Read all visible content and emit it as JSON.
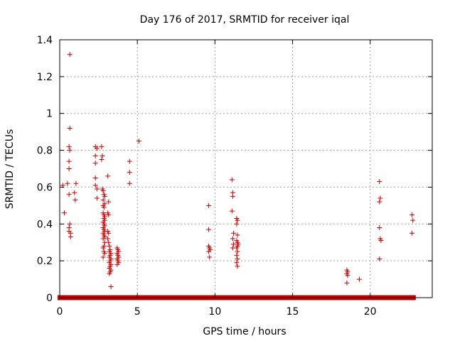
{
  "chart_data": {
    "type": "scatter",
    "title": "Day 176 of 2017, SRMTID for receiver iqal",
    "xlabel": "GPS time / hours",
    "ylabel": "SRMTID / TECUs",
    "xlim": [
      0,
      24
    ],
    "ylim": [
      0,
      1.4
    ],
    "x_ticks": [
      0,
      5,
      10,
      15,
      20
    ],
    "x_tick_labels": [
      "0",
      "5",
      "10",
      "15",
      "20"
    ],
    "y_ticks": [
      0,
      0.2,
      0.4,
      0.6,
      0.8,
      1.0,
      1.2,
      1.4
    ],
    "y_tick_labels": [
      "0",
      "0.2",
      "0.4",
      "0.6",
      "0.8",
      "1",
      "1.2",
      "1.4"
    ],
    "grid": true,
    "marker": "+",
    "color": "#cc0000",
    "series": [
      {
        "name": "SRMTID",
        "points": [
          [
            0.2,
            0.61
          ],
          [
            0.3,
            0.46
          ],
          [
            0.5,
            0.62
          ],
          [
            0.65,
            1.32
          ],
          [
            0.65,
            0.92
          ],
          [
            0.6,
            0.82
          ],
          [
            0.65,
            0.8
          ],
          [
            0.6,
            0.74
          ],
          [
            0.6,
            0.7
          ],
          [
            0.6,
            0.56
          ],
          [
            0.65,
            0.4
          ],
          [
            0.6,
            0.38
          ],
          [
            0.6,
            0.36
          ],
          [
            0.7,
            0.35
          ],
          [
            0.7,
            0.33
          ],
          [
            0.95,
            0.57
          ],
          [
            1.05,
            0.62
          ],
          [
            1.0,
            0.53
          ],
          [
            2.3,
            0.82
          ],
          [
            2.4,
            0.81
          ],
          [
            2.3,
            0.77
          ],
          [
            2.3,
            0.73
          ],
          [
            2.3,
            0.65
          ],
          [
            2.3,
            0.61
          ],
          [
            2.4,
            0.59
          ],
          [
            2.4,
            0.54
          ],
          [
            2.7,
            0.82
          ],
          [
            2.75,
            0.77
          ],
          [
            2.7,
            0.75
          ],
          [
            2.75,
            0.59
          ],
          [
            2.8,
            0.58
          ],
          [
            2.85,
            0.56
          ],
          [
            2.9,
            0.55
          ],
          [
            2.8,
            0.53
          ],
          [
            2.9,
            0.51
          ],
          [
            2.8,
            0.5
          ],
          [
            2.85,
            0.49
          ],
          [
            2.8,
            0.46
          ],
          [
            2.85,
            0.45
          ],
          [
            2.9,
            0.44
          ],
          [
            2.85,
            0.43
          ],
          [
            2.9,
            0.42
          ],
          [
            2.8,
            0.41
          ],
          [
            2.85,
            0.4
          ],
          [
            2.9,
            0.39
          ],
          [
            2.8,
            0.38
          ],
          [
            2.85,
            0.37
          ],
          [
            2.9,
            0.36
          ],
          [
            2.8,
            0.35
          ],
          [
            2.85,
            0.34
          ],
          [
            2.9,
            0.33
          ],
          [
            2.8,
            0.32
          ],
          [
            2.9,
            0.3
          ],
          [
            2.85,
            0.28
          ],
          [
            2.8,
            0.27
          ],
          [
            2.85,
            0.25
          ],
          [
            2.9,
            0.24
          ],
          [
            2.8,
            0.22
          ],
          [
            3.1,
            0.66
          ],
          [
            3.15,
            0.52
          ],
          [
            3.1,
            0.46
          ],
          [
            3.15,
            0.45
          ],
          [
            3.1,
            0.36
          ],
          [
            3.15,
            0.35
          ],
          [
            3.1,
            0.32
          ],
          [
            3.15,
            0.3
          ],
          [
            3.2,
            0.28
          ],
          [
            3.25,
            0.26
          ],
          [
            3.2,
            0.25
          ],
          [
            3.3,
            0.24
          ],
          [
            3.25,
            0.23
          ],
          [
            3.2,
            0.22
          ],
          [
            3.3,
            0.21
          ],
          [
            3.25,
            0.2
          ],
          [
            3.2,
            0.19
          ],
          [
            3.3,
            0.18
          ],
          [
            3.25,
            0.17
          ],
          [
            3.2,
            0.16
          ],
          [
            3.3,
            0.15
          ],
          [
            3.25,
            0.14
          ],
          [
            3.2,
            0.13
          ],
          [
            3.3,
            0.06
          ],
          [
            3.7,
            0.27
          ],
          [
            3.75,
            0.26
          ],
          [
            3.8,
            0.25
          ],
          [
            3.7,
            0.24
          ],
          [
            3.75,
            0.23
          ],
          [
            3.8,
            0.22
          ],
          [
            3.7,
            0.21
          ],
          [
            3.75,
            0.2
          ],
          [
            3.8,
            0.19
          ],
          [
            3.7,
            0.18
          ],
          [
            4.5,
            0.74
          ],
          [
            4.5,
            0.68
          ],
          [
            4.5,
            0.62
          ],
          [
            5.1,
            0.85
          ],
          [
            9.6,
            0.5
          ],
          [
            9.6,
            0.37
          ],
          [
            9.6,
            0.28
          ],
          [
            9.65,
            0.27
          ],
          [
            9.7,
            0.26
          ],
          [
            9.6,
            0.25
          ],
          [
            9.65,
            0.22
          ],
          [
            11.1,
            0.64
          ],
          [
            11.15,
            0.57
          ],
          [
            11.15,
            0.55
          ],
          [
            11.1,
            0.47
          ],
          [
            11.2,
            0.35
          ],
          [
            11.15,
            0.32
          ],
          [
            11.2,
            0.29
          ],
          [
            11.15,
            0.27
          ],
          [
            11.4,
            0.43
          ],
          [
            11.45,
            0.42
          ],
          [
            11.4,
            0.4
          ],
          [
            11.45,
            0.34
          ],
          [
            11.4,
            0.31
          ],
          [
            11.45,
            0.3
          ],
          [
            11.5,
            0.29
          ],
          [
            11.45,
            0.28
          ],
          [
            11.4,
            0.27
          ],
          [
            11.45,
            0.25
          ],
          [
            11.4,
            0.23
          ],
          [
            11.45,
            0.21
          ],
          [
            11.4,
            0.19
          ],
          [
            11.45,
            0.17
          ],
          [
            18.5,
            0.15
          ],
          [
            18.55,
            0.14
          ],
          [
            18.5,
            0.13
          ],
          [
            18.55,
            0.12
          ],
          [
            18.5,
            0.08
          ],
          [
            19.3,
            0.1
          ],
          [
            20.6,
            0.63
          ],
          [
            20.65,
            0.54
          ],
          [
            20.6,
            0.52
          ],
          [
            20.6,
            0.38
          ],
          [
            20.65,
            0.32
          ],
          [
            20.7,
            0.31
          ],
          [
            20.6,
            0.21
          ],
          [
            22.7,
            0.45
          ],
          [
            22.75,
            0.42
          ],
          [
            22.7,
            0.35
          ]
        ],
        "baseline_zero_segments": [
          [
            0.0,
            0.25
          ],
          [
            0.35,
            2.55
          ],
          [
            2.65,
            3.55
          ],
          [
            3.75,
            22.8
          ]
        ]
      }
    ]
  }
}
